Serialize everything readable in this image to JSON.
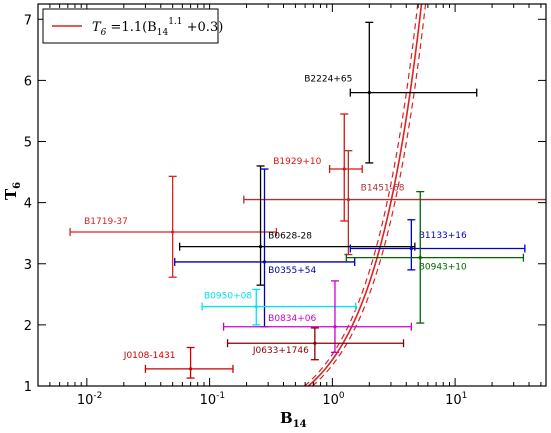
{
  "chart_data": {
    "type": "scatter",
    "xlabel": "B",
    "xlabel_sub": "14",
    "ylabel": "T",
    "ylabel_sub": "6",
    "xscale": "log",
    "xlim": [
      0.004,
      55
    ],
    "ylim": [
      1,
      7.25
    ],
    "x_ticks": [
      0.01,
      0.1,
      1,
      10
    ],
    "x_tick_base": "10",
    "x_tick_exps": [
      "-2",
      "-1",
      "0",
      "1"
    ],
    "y_ticks": [
      1,
      2,
      3,
      4,
      5,
      6,
      7
    ],
    "y_tick_labels": [
      "1",
      "2",
      "3",
      "4",
      "5",
      "6",
      "7"
    ],
    "grid": false,
    "legend": {
      "placement": "top-left",
      "color": "#dd2222",
      "label_main": "T",
      "label_sub": "6",
      "label_mid": " =1.1(B",
      "label_sub2": "14",
      "label_sup": "1.1",
      "label_end": " +0.3)"
    },
    "model": {
      "a": 1.1,
      "b": 0.3,
      "p": 1.1,
      "band_scale": [
        0.92,
        1.08
      ],
      "color": "#dd2222"
    },
    "points": [
      {
        "name": "B2224+65",
        "x": 2.0,
        "xerr": [
          1.4,
          15.0
        ],
        "y": 5.8,
        "yerr": [
          4.65,
          6.95
        ],
        "color": "#000000",
        "label_x": 0.59,
        "label_y": 5.98
      },
      {
        "name": "B1929+10",
        "x": 1.25,
        "xerr": [
          0.95,
          1.75
        ],
        "y": 4.55,
        "yerr": [
          3.7,
          5.45
        ],
        "color": "#dd1111",
        "label_x": 0.33,
        "label_y": 4.63
      },
      {
        "name": "B1451-68",
        "x": 1.35,
        "xerr": [
          0.19,
          55
        ],
        "y": 4.05,
        "yerr": [
          3.15,
          4.85
        ],
        "color": "#aa3333",
        "label_x": 1.7,
        "label_y": 4.2
      },
      {
        "name": "B1719-37",
        "x": 0.05,
        "xerr": [
          0.0073,
          0.35
        ],
        "y": 3.52,
        "yerr": [
          2.78,
          4.43
        ],
        "color": "#dd2222",
        "label_x": 0.0095,
        "label_y": 3.65
      },
      {
        "name": "B0628-28",
        "x": 0.26,
        "xerr": [
          0.057,
          4.7
        ],
        "y": 3.28,
        "yerr": [
          2.65,
          4.6
        ],
        "color": "#000000",
        "label_x": 0.3,
        "label_y": 3.41
      },
      {
        "name": "B1133+16",
        "x": 4.4,
        "xerr": [
          1.4,
          37
        ],
        "y": 3.25,
        "yerr": [
          2.9,
          3.72
        ],
        "color": "#0000cc",
        "label_x": 5.05,
        "label_y": 3.42
      },
      {
        "name": "B0355+54",
        "x": 0.28,
        "xerr": [
          0.052,
          1.52
        ],
        "y": 3.03,
        "yerr": [
          1.97,
          4.55
        ],
        "color": "#0000aa",
        "label_x": 0.3,
        "label_y": 2.85
      },
      {
        "name": "B0943+10",
        "x": 5.2,
        "xerr": [
          1.3,
          36
        ],
        "y": 3.1,
        "yerr": [
          2.03,
          4.18
        ],
        "color": "#006600",
        "label_x": 5.05,
        "label_y": 2.91
      },
      {
        "name": "B0950+08",
        "x": 0.24,
        "xerr": [
          0.087,
          1.55
        ],
        "y": 2.3,
        "yerr": [
          2.0,
          2.58
        ],
        "color": "#00e5ee",
        "label_x": 0.09,
        "label_y": 2.43
      },
      {
        "name": "B0834+06",
        "x": 1.05,
        "xerr": [
          0.13,
          4.4
        ],
        "y": 1.97,
        "yerr": [
          1.55,
          2.72
        ],
        "color": "#cc00cc",
        "label_x": 0.3,
        "label_y": 2.06
      },
      {
        "name": "J0633+1746",
        "x": 0.72,
        "xerr": [
          0.14,
          3.8
        ],
        "y": 1.7,
        "yerr": [
          1.43,
          1.95
        ],
        "color": "#880000",
        "label_x": 0.225,
        "label_y": 1.54
      },
      {
        "name": "J0108-1431",
        "x": 0.07,
        "xerr": [
          0.03,
          0.155
        ],
        "y": 1.28,
        "yerr": [
          1.13,
          1.63
        ],
        "color": "#cc0000",
        "label_x": 0.02,
        "label_y": 1.46
      }
    ]
  }
}
